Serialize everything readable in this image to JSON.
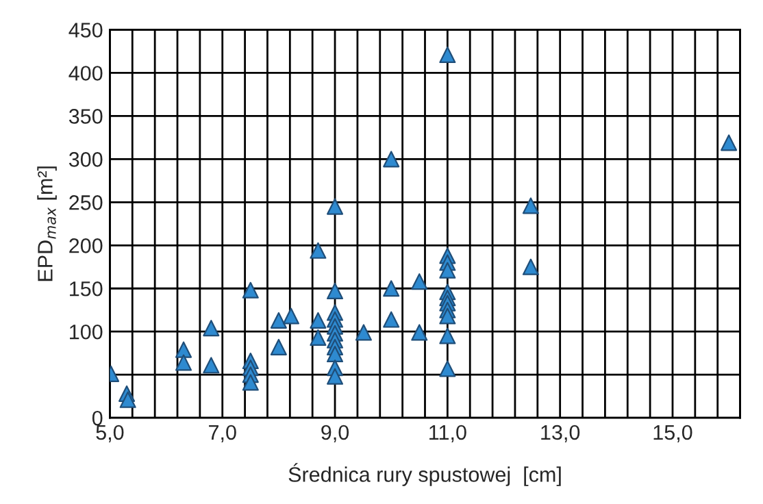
{
  "chart_data": {
    "type": "scatter",
    "xlabel": "Średnica rury spustowej  [cm]",
    "ylabel": "EPD$_{max}$ [m²]",
    "x": [
      5.02,
      5.3,
      5.32,
      6.31,
      6.31,
      6.8,
      6.8,
      7.5,
      7.5,
      7.5,
      7.5,
      7.5,
      8.0,
      8.0,
      8.22,
      8.7,
      8.7,
      8.7,
      9.0,
      9.0,
      9.0,
      9.0,
      9.0,
      9.0,
      9.0,
      9.0,
      9.0,
      9.0,
      9.0,
      9.51,
      10.0,
      10.0,
      10.0,
      10.5,
      10.5,
      11.0,
      11.0,
      11.0,
      11.0,
      11.0,
      11.0,
      11.0,
      11.0,
      11.0,
      11.0,
      11.0,
      12.48,
      12.48,
      16.0
    ],
    "series": [
      {
        "color": "#2e8ad0",
        "values": [
          51,
          28,
          21,
          79,
          64,
          104,
          61,
          148,
          66,
          58,
          50,
          41,
          113,
          82,
          118,
          194,
          113,
          93,
          245,
          147,
          122,
          114,
          106,
          98,
          90,
          82,
          74,
          58,
          48,
          99,
          300,
          150,
          114,
          158,
          99,
          421,
          188,
          180,
          171,
          146,
          139,
          133,
          125,
          118,
          95,
          57,
          246,
          175,
          319
        ]
      }
    ],
    "marker": "triangle",
    "grid": true,
    "xlim": [
      5,
      16.2
    ],
    "xticks": [
      {
        "value": 5,
        "label": "5,0"
      },
      {
        "value": 5.4,
        "label": null
      },
      {
        "value": 5.8,
        "label": null
      },
      {
        "value": 6.2,
        "label": null
      },
      {
        "value": 6.6,
        "label": null
      },
      {
        "value": 7,
        "label": "7,0"
      },
      {
        "value": 7.4,
        "label": null
      },
      {
        "value": 7.8,
        "label": null
      },
      {
        "value": 8.2,
        "label": null
      },
      {
        "value": 8.6,
        "label": null
      },
      {
        "value": 9,
        "label": "9,0"
      },
      {
        "value": 9.4,
        "label": null
      },
      {
        "value": 9.8,
        "label": null
      },
      {
        "value": 10.2,
        "label": null
      },
      {
        "value": 10.6,
        "label": null
      },
      {
        "value": 11,
        "label": "11,0"
      },
      {
        "value": 11.4,
        "label": null
      },
      {
        "value": 11.8,
        "label": null
      },
      {
        "value": 12.2,
        "label": null
      },
      {
        "value": 12.6,
        "label": null
      },
      {
        "value": 13,
        "label": "13,0"
      },
      {
        "value": 13.4,
        "label": null
      },
      {
        "value": 13.8,
        "label": null
      },
      {
        "value": 14.2,
        "label": null
      },
      {
        "value": 14.6,
        "label": null
      },
      {
        "value": 15,
        "label": "15,0"
      },
      {
        "value": 15.4,
        "label": null
      },
      {
        "value": 15.8,
        "label": null
      },
      {
        "value": 16.2,
        "label": null
      }
    ],
    "ylim": [
      0,
      450
    ],
    "yticks": [
      0,
      {
        "value": 50,
        "label": null
      },
      100,
      150,
      200,
      250,
      300,
      350,
      400,
      450
    ]
  }
}
